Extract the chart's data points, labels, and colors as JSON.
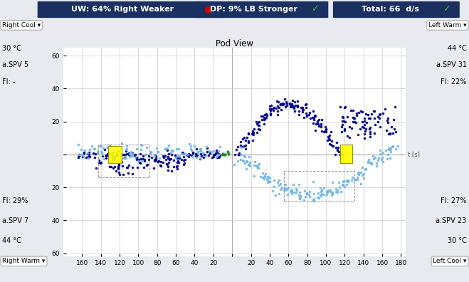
{
  "title_bar": {
    "uw_text": "UW: 64% Right Weaker",
    "uw_symbol": "●",
    "uw_color": "#cc0000",
    "dp_text": "DP: 9% LB Stronger",
    "dp_symbol": "✓",
    "dp_color": "#33cc33",
    "total_text": "Total: 66  d/s",
    "total_symbol": "✓",
    "total_color": "#33cc33",
    "bg_color": "#1a3060",
    "text_color": "#ffffff"
  },
  "corner_labels": {
    "top_left": "Right Cool",
    "top_right": "Left Warm",
    "bot_left": "Right Warm",
    "bot_right": "Left Cool"
  },
  "left_panel_top": {
    "temp": "30 °C",
    "spv": "a.SPV 5",
    "fi": "FI: -"
  },
  "left_panel_bot": {
    "fi": "FI: 29%",
    "spv": "a.SPV 7",
    "temp": "44 °C"
  },
  "right_panel_top": {
    "temp": "44 °C",
    "spv": "a.SPV 31",
    "fi": "FI: 22%"
  },
  "right_panel_bot": {
    "fi": "FI: 27%",
    "spv": "a.SPV 23",
    "temp": "30 °C"
  },
  "plot_title": "Pod View",
  "bg_color": "#e8eaf0",
  "plot_bg": "#ffffff",
  "grid_color": "#cccccc",
  "dark_blue": "#00008B",
  "light_blue": "#6ab4e8",
  "green": "#228B22",
  "yellow_box": "#ffff00"
}
